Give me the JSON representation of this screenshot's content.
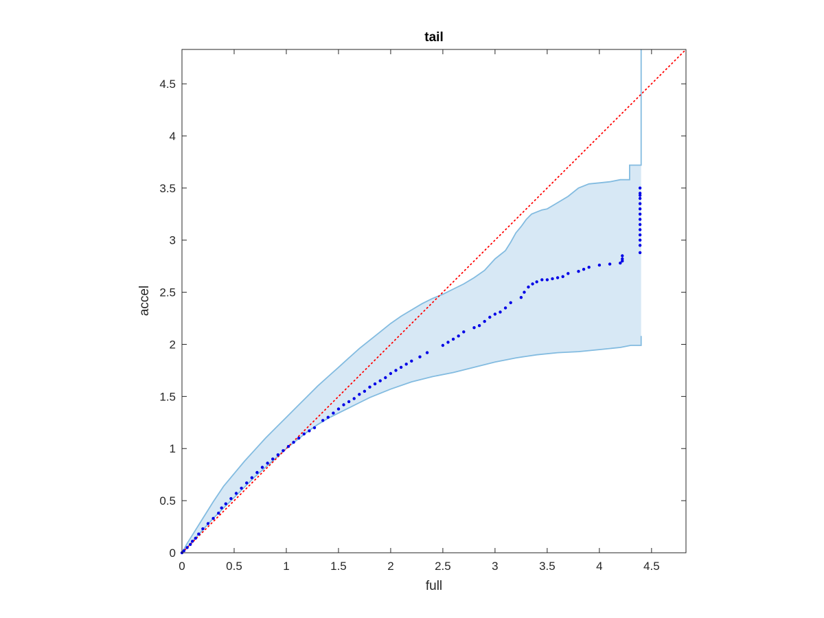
{
  "chart_data": {
    "type": "scatter",
    "title": "tail",
    "xlabel": "full",
    "ylabel": "accel",
    "xlim": [
      0,
      4.83
    ],
    "ylim": [
      0,
      4.83
    ],
    "xticks": [
      0,
      0.5,
      1,
      1.5,
      2,
      2.5,
      3,
      3.5,
      4,
      4.5
    ],
    "yticks": [
      0,
      0.5,
      1,
      1.5,
      2,
      2.5,
      3,
      3.5,
      4,
      4.5
    ],
    "grid": false,
    "legend": "none",
    "colors": {
      "band_fill": "#d7e8f5",
      "band_edge": "#82bbe0",
      "points": "#0000e6",
      "reference": "#ff0000",
      "axes": "#262626"
    },
    "reference_line": {
      "style": "dotted",
      "x": [
        0,
        4.83
      ],
      "y": [
        0,
        4.83
      ]
    },
    "band_upper": {
      "x": [
        0,
        0.05,
        0.1,
        0.2,
        0.3,
        0.4,
        0.5,
        0.6,
        0.7,
        0.8,
        0.9,
        1.0,
        1.1,
        1.2,
        1.3,
        1.4,
        1.5,
        1.6,
        1.7,
        1.8,
        1.9,
        2.0,
        2.1,
        2.2,
        2.3,
        2.4,
        2.5,
        2.6,
        2.7,
        2.8,
        2.9,
        3.0,
        3.05,
        3.1,
        3.15,
        3.2,
        3.25,
        3.3,
        3.35,
        3.4,
        3.45,
        3.5,
        3.6,
        3.7,
        3.8,
        3.9,
        4.0,
        4.1,
        4.2,
        4.29,
        4.29,
        4.4,
        4.4
      ],
      "y": [
        0.0,
        0.09,
        0.17,
        0.33,
        0.49,
        0.64,
        0.76,
        0.88,
        0.99,
        1.1,
        1.2,
        1.3,
        1.4,
        1.5,
        1.6,
        1.69,
        1.78,
        1.87,
        1.96,
        2.04,
        2.12,
        2.2,
        2.27,
        2.33,
        2.39,
        2.44,
        2.48,
        2.53,
        2.58,
        2.64,
        2.71,
        2.82,
        2.86,
        2.9,
        2.98,
        3.07,
        3.13,
        3.2,
        3.25,
        3.27,
        3.29,
        3.3,
        3.36,
        3.42,
        3.5,
        3.54,
        3.55,
        3.56,
        3.58,
        3.58,
        3.72,
        3.72,
        4.83
      ]
    },
    "band_lower": {
      "x": [
        0,
        0.05,
        0.1,
        0.2,
        0.3,
        0.4,
        0.5,
        0.6,
        0.7,
        0.8,
        0.9,
        1.0,
        1.1,
        1.2,
        1.3,
        1.4,
        1.5,
        1.6,
        1.7,
        1.8,
        1.9,
        2.0,
        2.2,
        2.4,
        2.6,
        2.8,
        3.0,
        3.2,
        3.4,
        3.6,
        3.8,
        4.0,
        4.2,
        4.3,
        4.4,
        4.4
      ],
      "y": [
        0.0,
        0.05,
        0.11,
        0.22,
        0.33,
        0.43,
        0.53,
        0.63,
        0.73,
        0.82,
        0.91,
        1.0,
        1.08,
        1.16,
        1.23,
        1.29,
        1.34,
        1.39,
        1.44,
        1.49,
        1.53,
        1.57,
        1.64,
        1.69,
        1.73,
        1.78,
        1.83,
        1.87,
        1.9,
        1.92,
        1.93,
        1.95,
        1.97,
        1.99,
        1.99,
        2.08
      ]
    },
    "points": {
      "x": [
        0.0,
        0.02,
        0.05,
        0.08,
        0.1,
        0.13,
        0.16,
        0.2,
        0.25,
        0.3,
        0.35,
        0.38,
        0.42,
        0.47,
        0.52,
        0.57,
        0.62,
        0.67,
        0.72,
        0.77,
        0.82,
        0.87,
        0.92,
        0.97,
        1.02,
        1.07,
        1.12,
        1.17,
        1.22,
        1.27,
        1.35,
        1.4,
        1.45,
        1.5,
        1.55,
        1.6,
        1.65,
        1.7,
        1.75,
        1.8,
        1.85,
        1.9,
        1.95,
        2.0,
        2.05,
        2.1,
        2.15,
        2.2,
        2.28,
        2.35,
        2.5,
        2.55,
        2.6,
        2.65,
        2.7,
        2.8,
        2.85,
        2.9,
        2.95,
        3.0,
        3.05,
        3.1,
        3.15,
        3.25,
        3.28,
        3.32,
        3.36,
        3.4,
        3.45,
        3.5,
        3.55,
        3.6,
        3.65,
        3.7,
        3.8,
        3.85,
        3.9,
        4.0,
        4.1,
        4.2,
        4.22,
        4.22,
        4.22,
        4.39,
        4.39,
        4.39,
        4.39,
        4.39,
        4.39,
        4.39,
        4.39,
        4.39,
        4.39,
        4.39,
        4.39,
        4.39,
        4.39
      ],
      "y": [
        0.0,
        0.02,
        0.05,
        0.08,
        0.11,
        0.14,
        0.18,
        0.23,
        0.28,
        0.33,
        0.38,
        0.43,
        0.47,
        0.52,
        0.57,
        0.62,
        0.67,
        0.72,
        0.77,
        0.82,
        0.86,
        0.9,
        0.94,
        0.98,
        1.02,
        1.06,
        1.1,
        1.14,
        1.17,
        1.2,
        1.27,
        1.3,
        1.34,
        1.38,
        1.42,
        1.45,
        1.48,
        1.52,
        1.55,
        1.59,
        1.62,
        1.65,
        1.68,
        1.72,
        1.75,
        1.78,
        1.81,
        1.84,
        1.88,
        1.92,
        1.99,
        2.02,
        2.05,
        2.08,
        2.12,
        2.16,
        2.18,
        2.22,
        2.26,
        2.29,
        2.31,
        2.35,
        2.4,
        2.45,
        2.5,
        2.55,
        2.58,
        2.6,
        2.62,
        2.62,
        2.63,
        2.64,
        2.65,
        2.68,
        2.7,
        2.72,
        2.74,
        2.76,
        2.77,
        2.78,
        2.82,
        2.85,
        2.8,
        2.88,
        2.95,
        3.0,
        3.05,
        3.1,
        3.15,
        3.2,
        3.25,
        3.3,
        3.35,
        3.4,
        3.43,
        3.45,
        3.5
      ]
    }
  }
}
